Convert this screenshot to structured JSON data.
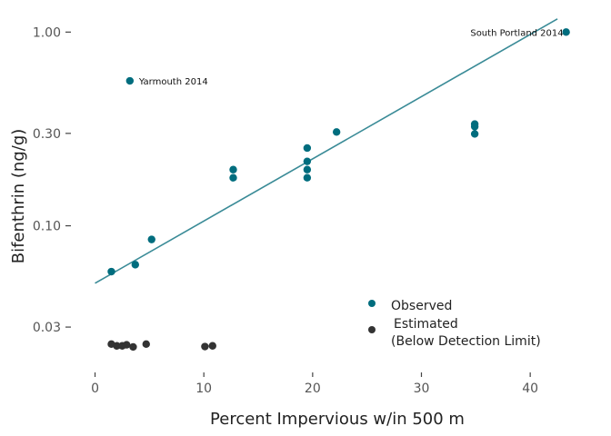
{
  "chart_data": {
    "type": "scatter",
    "title": "",
    "xlabel": "Percent Impervious w/in 500 m",
    "ylabel": "Bifenthrin (ng/g)",
    "xlim": [
      -1.8,
      44.5
    ],
    "ylim": [
      0.0175,
      1.18
    ],
    "y_scale": "log",
    "x_ticks": [
      0,
      10,
      20,
      30,
      40
    ],
    "x_tick_labels": [
      "0",
      "10",
      "20",
      "30",
      "40"
    ],
    "y_ticks": [
      0.03,
      0.1,
      0.3,
      1.0
    ],
    "y_tick_labels": [
      "0.03",
      "0.10",
      "0.30",
      "1.00"
    ],
    "grid": false,
    "legend_position": "bottom-right",
    "colors": {
      "observed": "#006d7e",
      "estimated": "#333333",
      "fit_line": "#3a8b97"
    },
    "series": [
      {
        "name": "Observed",
        "color": "#006d7e",
        "points": [
          {
            "x": 1.5,
            "y": 0.058
          },
          {
            "x": 3.2,
            "y": 0.56
          },
          {
            "x": 3.7,
            "y": 0.063
          },
          {
            "x": 5.2,
            "y": 0.085
          },
          {
            "x": 12.7,
            "y": 0.195
          },
          {
            "x": 12.7,
            "y": 0.177
          },
          {
            "x": 19.5,
            "y": 0.252
          },
          {
            "x": 19.5,
            "y": 0.215
          },
          {
            "x": 19.5,
            "y": 0.195
          },
          {
            "x": 19.5,
            "y": 0.177
          },
          {
            "x": 22.2,
            "y": 0.305
          },
          {
            "x": 34.9,
            "y": 0.335
          },
          {
            "x": 34.9,
            "y": 0.325
          },
          {
            "x": 34.9,
            "y": 0.298
          },
          {
            "x": 43.3,
            "y": 1.0
          }
        ]
      },
      {
        "name": "Estimated\n(Below Detection Limit)",
        "color": "#333333",
        "points": [
          {
            "x": 1.5,
            "y": 0.0245
          },
          {
            "x": 2.0,
            "y": 0.024
          },
          {
            "x": 2.5,
            "y": 0.024
          },
          {
            "x": 2.9,
            "y": 0.0243
          },
          {
            "x": 3.5,
            "y": 0.0237
          },
          {
            "x": 4.7,
            "y": 0.0245
          },
          {
            "x": 10.1,
            "y": 0.0238
          },
          {
            "x": 10.8,
            "y": 0.024
          }
        ]
      }
    ],
    "fit_line": {
      "x": [
        0,
        42.5
      ],
      "y": [
        0.0505,
        1.17
      ]
    },
    "annotations": [
      {
        "text": "Yarmouth 2014",
        "x": 3.2,
        "y": 0.56
      },
      {
        "text": "South Portland 2014",
        "x": 43.3,
        "y": 1.0
      }
    ],
    "legend": [
      {
        "label": "Observed",
        "color": "#006d7e"
      },
      {
        "label": "Estimated",
        "label2": "(Below Detection Limit)",
        "color": "#333333"
      }
    ]
  }
}
